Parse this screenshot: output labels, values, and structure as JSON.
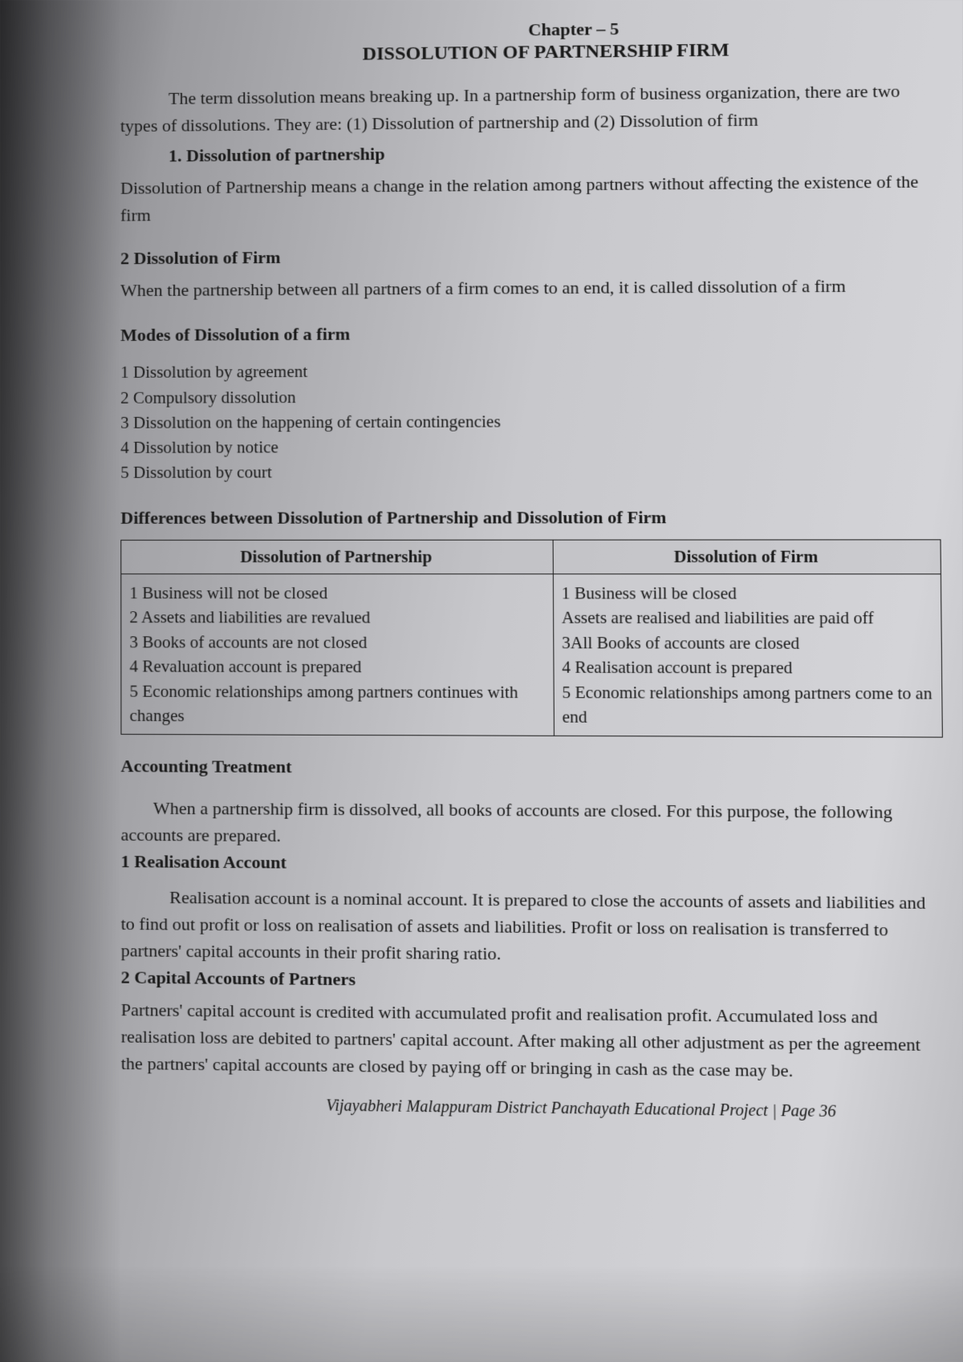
{
  "chapter_line": "Chapter – 5",
  "chapter_title": "DISSOLUTION OF PARTNERSHIP FIRM",
  "intro": "The term dissolution means breaking up. In a partnership form of business organization, there are two types of dissolutions. They are: (1) Dissolution of partnership and (2) Dissolution of firm",
  "section1": {
    "heading": "1. Dissolution of partnership",
    "body": "Dissolution of Partnership means a change in the relation among partners without affecting the existence of the firm"
  },
  "section2": {
    "heading": "2 Dissolution of Firm",
    "body": "When the partnership between all partners of a firm comes to an end, it is called dissolution of a firm"
  },
  "modes": {
    "heading": "Modes of Dissolution of a firm",
    "items": [
      "1 Dissolution by agreement",
      "2 Compulsory dissolution",
      "3 Dissolution on the happening of certain contingencies",
      "4 Dissolution by notice",
      "5 Dissolution by court"
    ]
  },
  "diff": {
    "heading": "Differences between Dissolution of Partnership and Dissolution of Firm",
    "col1_header": "Dissolution of Partnership",
    "col2_header": "Dissolution of Firm",
    "col1_rows": [
      "1 Business will not be closed",
      "2 Assets and liabilities are revalued",
      "3 Books of accounts are not closed",
      "4 Revaluation account is prepared",
      "5 Economic relationships among partners continues with changes"
    ],
    "col2_rows": [
      "1 Business will be closed",
      "Assets are realised and liabilities are paid off",
      "3All Books of accounts are closed",
      "4 Realisation account is prepared",
      "5 Economic relationships among partners come to an end"
    ]
  },
  "accounting": {
    "heading": "Accounting Treatment",
    "intro": "When a partnership firm is dissolved, all books of accounts are closed. For this purpose, the following accounts are prepared.",
    "sub1_heading": "1 Realisation Account",
    "sub1_body": "Realisation account is a nominal account. It is prepared to close the accounts of assets and liabilities and to find out profit or loss on realisation of assets and liabilities. Profit or loss on realisation is transferred to partners' capital accounts in their profit sharing ratio.",
    "sub2_heading": "2 Capital Accounts of Partners",
    "sub2_body": "Partners' capital account is credited with accumulated profit and realisation profit. Accumulated loss and realisation loss are debited to partners' capital account. After making all other adjustment as per the agreement the partners' capital accounts are closed by paying off or bringing in cash as the case may be."
  },
  "footer": "Vijayabheri Malappuram District Panchayath Educational Project | Page 36"
}
